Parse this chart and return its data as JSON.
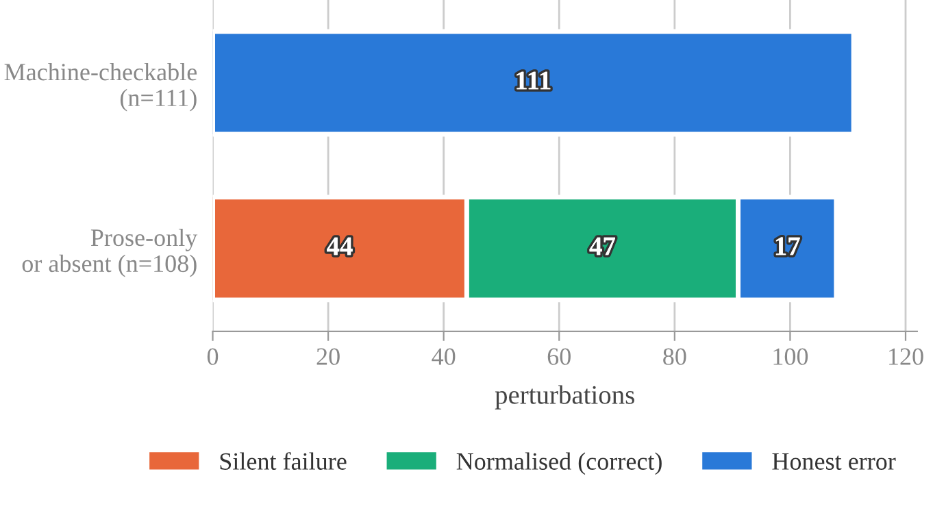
{
  "chart_data": {
    "type": "bar",
    "orientation": "horizontal",
    "stacked": true,
    "xlabel": "perturbations",
    "categories": [
      "Machine-checkable\n(n=111)",
      "Prose-only\nor absent (n=108)"
    ],
    "series": [
      {
        "name": "Silent failure",
        "color": "#e8673a",
        "values": [
          null,
          44
        ]
      },
      {
        "name": "Normalised (correct)",
        "color": "#1aae7a",
        "values": [
          null,
          47
        ]
      },
      {
        "name": "Honest error",
        "color": "#2979d8",
        "values": [
          111,
          17
        ]
      }
    ],
    "xlim": [
      0,
      122
    ],
    "xticks": [
      0,
      20,
      40,
      60,
      80,
      100,
      120
    ],
    "grid": "x",
    "legend": "bottom",
    "data_labels": true
  }
}
